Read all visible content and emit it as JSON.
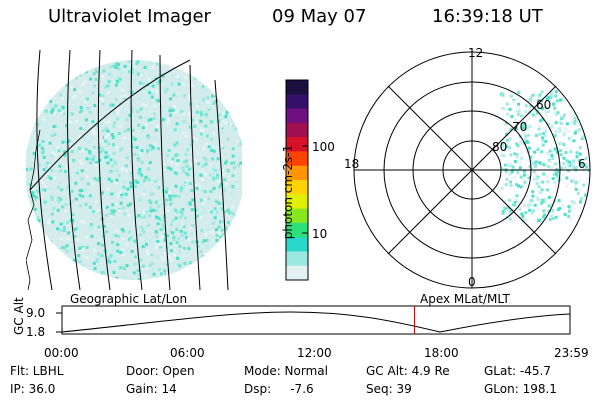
{
  "header": {
    "instrument": "Ultraviolet Imager",
    "date": "09 May 07",
    "time": "16:39:18 UT"
  },
  "colorbar": {
    "unit_label": "photon cm-2s-1",
    "tick_100": "100",
    "tick_10": "10",
    "colors": [
      "#1a1040",
      "#35106a",
      "#6e1080",
      "#a01050",
      "#d81028",
      "#ff4400",
      "#ff9500",
      "#ffd200",
      "#dff000",
      "#88e820",
      "#2ee07a",
      "#28d8c8",
      "#9ae8e0",
      "#e2f2f2"
    ]
  },
  "polar": {
    "mlt_12": "12",
    "mlt_18": "18",
    "mlt_6": "6",
    "mlt_0": "0",
    "lat_60": "60",
    "lat_70": "70",
    "lat_80": "80"
  },
  "panels": {
    "left_label": "Geographic Lat/Lon",
    "right_label": "Apex MLat/MLT"
  },
  "altitude_plot": {
    "axis_label": "GC Alt",
    "ymax": "9.0",
    "ymin": "1.8",
    "x_ticks": [
      "00:00",
      "06:00",
      "12:00",
      "18:00",
      "23:59"
    ],
    "current_time_fraction": 0.694,
    "marker_color": "#cc0000"
  },
  "status": {
    "flt": "Flt: LBHL",
    "ip": "IP: 36.0",
    "door": "Door: Open",
    "gain": "Gain: 14",
    "mode": "Mode: Normal",
    "dsp": "Dsp:     -7.6",
    "gcalt": "GC Alt: 4.9 Re",
    "seq": "Seq: 39",
    "glat": "GLat: -45.7",
    "glon": "GLon: 198.1"
  }
}
